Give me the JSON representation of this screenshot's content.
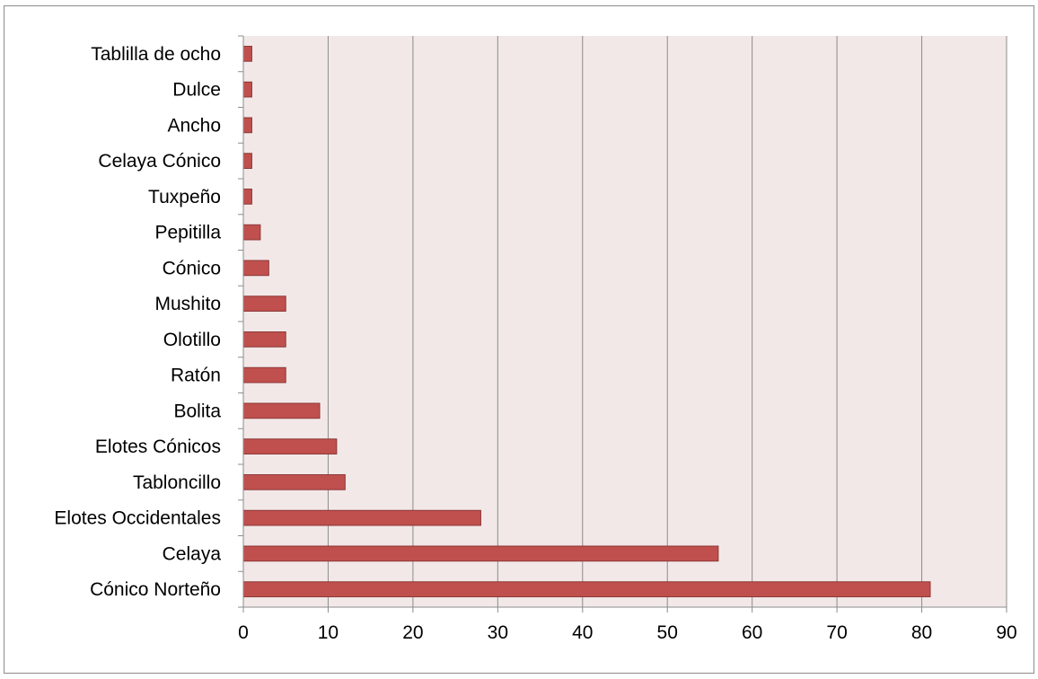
{
  "chart_data": {
    "type": "bar",
    "orientation": "horizontal",
    "title": "",
    "xlabel": "",
    "ylabel": "",
    "categories": [
      "Cónico Norteño",
      "Celaya",
      "Elotes Occidentales",
      "Tabloncillo",
      "Elotes Cónicos",
      "Bolita",
      "Ratón",
      "Olotillo",
      "Mushito",
      "Cónico",
      "Pepitilla",
      "Tuxpeño",
      "Celaya Cónico",
      "Ancho",
      "Dulce",
      "Tablilla de ocho"
    ],
    "values": [
      81,
      56,
      28,
      12,
      11,
      9,
      5,
      5,
      5,
      3,
      2,
      1,
      1,
      1,
      1,
      1
    ],
    "xlim": [
      0,
      90
    ],
    "xticks": [
      "0",
      "10",
      "20",
      "30",
      "40",
      "50",
      "60",
      "70",
      "80",
      "90"
    ],
    "grid": "vertical",
    "legend": "none",
    "colors": {
      "bar_fill": "#c0504d",
      "bar_stroke": "#8c3836",
      "plot_background": "#f2e8e8",
      "gridline": "#8c8c8c",
      "axis": "#8c8c8c"
    }
  }
}
